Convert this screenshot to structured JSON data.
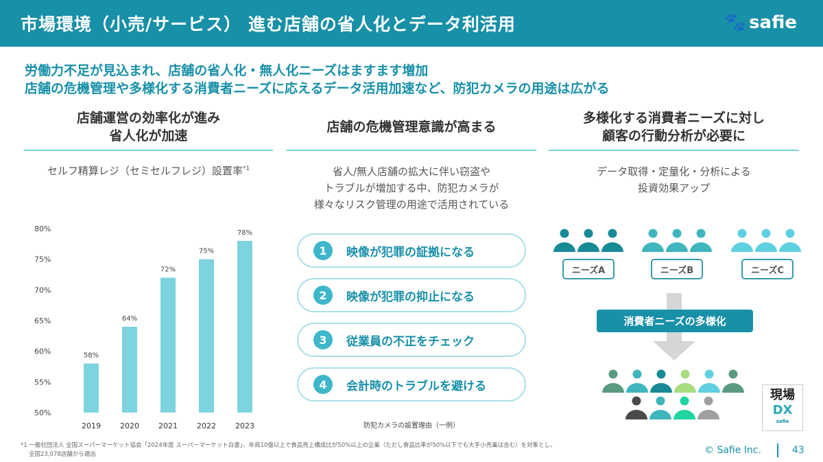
{
  "header": {
    "title": "市場環境（小売/サービス） 進む店舗の省人化とデータ利活用",
    "logo": "safie"
  },
  "lead": [
    "労働力不足が見込まれ、店舗の省人化・無人化ニーズはますます増加",
    "店舗の危機管理や多様化する消費者ニーズに応えるデータ活用加速など、防犯カメラの用途は広がる"
  ],
  "columns": [
    {
      "heading": [
        "店舗運営の効率化が進み",
        "省人化が加速"
      ],
      "subtitle": "セルフ精算レジ（セミセルフレジ）設置率",
      "note_mark": "*1"
    },
    {
      "heading": [
        "店舗の危機管理意識が高まる"
      ],
      "text": [
        "省人/無人店舗の拡大に伴い窃盗や",
        "トラブルが増加する中、防犯カメラが",
        "様々なリスク管理の用途で活用されている"
      ],
      "reasons": [
        {
          "num": "1",
          "label": "映像が犯罪の証拠になる"
        },
        {
          "num": "2",
          "label": "映像が犯罪の抑止になる"
        },
        {
          "num": "3",
          "label": "従業員の不正をチェック"
        },
        {
          "num": "4",
          "label": "会計時のトラブルを避ける"
        }
      ],
      "caption": "防犯カメラの設置理由（一例）"
    },
    {
      "heading": [
        "多様化する消費者ニーズに対し",
        "顧客の行動分析が必要に"
      ],
      "text": [
        "データ取得・定量化・分析による",
        "投資効果アップ"
      ],
      "needs": [
        "ニーズA",
        "ニーズB",
        "ニーズC"
      ],
      "banner": "消費者ニーズの多様化",
      "colors": {
        "a": "#178a96",
        "b": "#3fb5bd",
        "c": "#5fd0e0"
      },
      "mixed": [
        "#5a9a80",
        "#3fb5bd",
        "#178a96",
        "#a8dc80",
        "#5fd0e0",
        "#5a9a80",
        "#4a4a4a",
        "#3fb5bd",
        "#20d5a0",
        "#a0a0a0"
      ]
    }
  ],
  "chart_data": {
    "type": "bar",
    "categories": [
      "2019",
      "2020",
      "2021",
      "2022",
      "2023"
    ],
    "values": [
      58,
      64,
      72,
      75,
      78
    ],
    "value_labels": [
      "58%",
      "64%",
      "72%",
      "75%",
      "78%"
    ],
    "ylim": [
      50,
      80
    ],
    "yticks": [
      "50%",
      "55%",
      "60%",
      "65%",
      "70%",
      "75%",
      "80%"
    ],
    "ytick_values": [
      50,
      55,
      60,
      65,
      70,
      75,
      80
    ],
    "color": "#7dd3df",
    "title": "セルフ精算レジ（セミセルフレジ）設置率"
  },
  "badge": {
    "line1": "現場",
    "line2": "DX",
    "line3": "safie"
  },
  "footer": {
    "note": "*1 一般社団法人 全国スーパーマーケット協会「2024年度 スーパーマーケット白書」、年商10億以上で食品売上構成比が50%以上の企業（ただし食品比率が50%以下でも大手小売業は含む）を対象とし、",
    "note2": "全国23,078店舗から選出",
    "copyright": "© Safie Inc.",
    "page": "43"
  }
}
